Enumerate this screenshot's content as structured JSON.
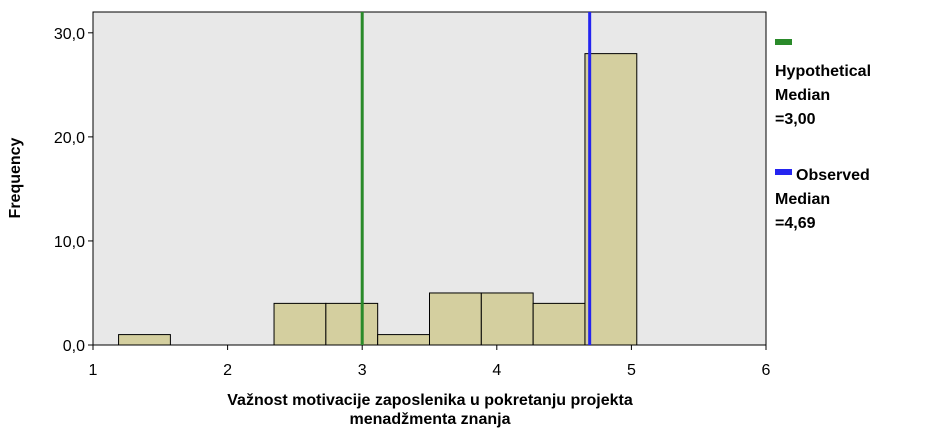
{
  "chart_data": {
    "type": "histogram",
    "ylabel": "Frequency",
    "xlabel": [
      "Važnost motivacije zaposlenika u pokretanju projekta",
      "menadžmenta znanja"
    ],
    "bins": [
      1.19,
      1.575,
      1.96,
      2.345,
      2.73,
      3.115,
      3.5,
      3.885,
      4.27,
      4.655,
      5.04
    ],
    "values": [
      1,
      0,
      0,
      4,
      4,
      1,
      5,
      5,
      4,
      28
    ],
    "color": "#d4cf9f",
    "xlim": [
      1,
      6
    ],
    "xticks": [
      1,
      2,
      3,
      4,
      5,
      6
    ],
    "ylim": [
      0,
      32
    ],
    "yticks": [
      {
        "value": 0,
        "label": "0,0"
      },
      {
        "value": 10,
        "label": "10,0"
      },
      {
        "value": 20,
        "label": "20,0"
      },
      {
        "value": 30,
        "label": "30,0"
      }
    ],
    "reference_lines": [
      {
        "name": "Hypothetical Median =3,00",
        "value": 3,
        "color": "#2a8a2a"
      },
      {
        "name": "Observed Median =4,69",
        "value": 4.69,
        "color": "#2424f0"
      }
    ]
  }
}
